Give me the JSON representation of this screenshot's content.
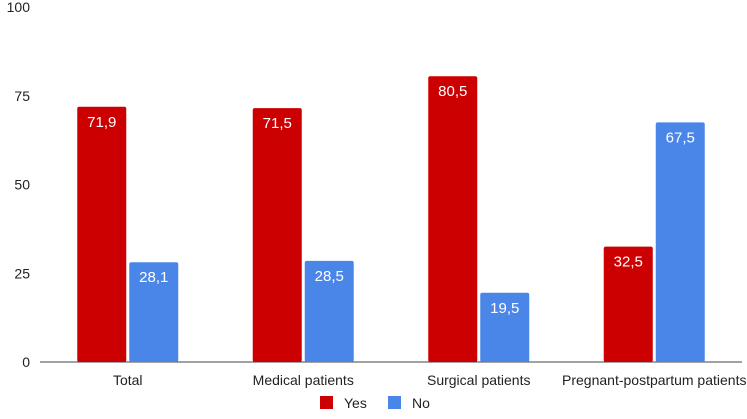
{
  "chart_data": {
    "type": "bar",
    "title": "",
    "xlabel": "",
    "ylabel": "",
    "ylim": [
      0,
      100
    ],
    "yticks": [
      0,
      25,
      50,
      75,
      100
    ],
    "grid": false,
    "legend_position": "bottom",
    "categories": [
      "Total",
      "Medical patients",
      "Surgical patients",
      "Pregnant-postpartum patients"
    ],
    "series": [
      {
        "name": "Yes",
        "color": "#cc0000",
        "values": [
          71.9,
          71.5,
          80.5,
          32.5
        ],
        "labels": [
          "71,9",
          "71,5",
          "80,5",
          "32,5"
        ]
      },
      {
        "name": "No",
        "color": "#4a86e8",
        "values": [
          28.1,
          28.5,
          19.5,
          67.5
        ],
        "labels": [
          "28,1",
          "28,5",
          "19,5",
          "67,5"
        ]
      }
    ]
  }
}
